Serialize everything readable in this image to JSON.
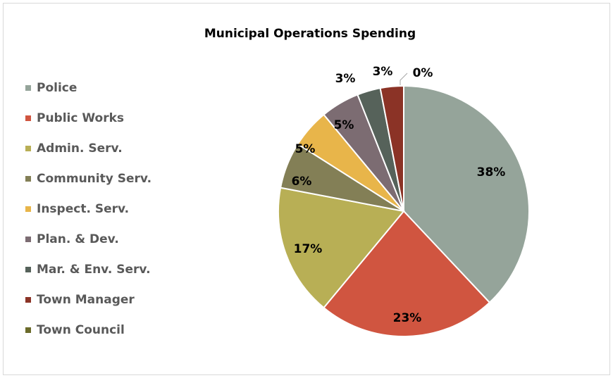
{
  "chart_data": {
    "type": "pie",
    "title": "Municipal Operations Spending",
    "categories": [
      "Police",
      "Public Works",
      "Admin. Serv.",
      "Community Serv.",
      "Inspect. Serv.",
      "Plan. & Dev.",
      "Mar. & Env. Serv.",
      "Town Manager",
      "Town Council"
    ],
    "values": [
      38,
      23,
      17,
      6,
      5,
      5,
      3,
      3,
      0
    ],
    "value_labels": [
      "38%",
      "23%",
      "17%",
      "6%",
      "5%",
      "5%",
      "3%",
      "3%",
      "0%"
    ],
    "colors": [
      "#95a49a",
      "#d05540",
      "#b8af55",
      "#837f56",
      "#e8b54a",
      "#7c6c72",
      "#56625a",
      "#8b3326",
      "#6b6b2a"
    ],
    "legend": "left"
  }
}
